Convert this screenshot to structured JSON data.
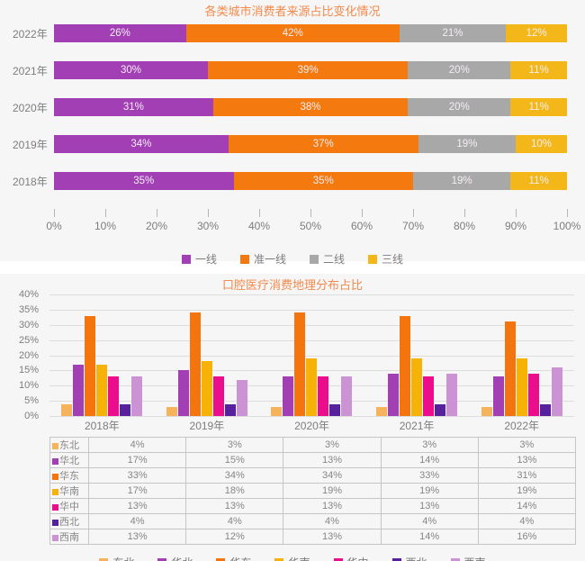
{
  "page": {
    "background": "#ffffff",
    "panel_background": "#f6f6f6"
  },
  "chart_data": [
    {
      "type": "bar",
      "variant": "stacked-horizontal",
      "title": "各类城市消费者来源占比变化情况",
      "title_color": "#f28a4d",
      "categories": [
        "2022年",
        "2021年",
        "2020年",
        "2019年",
        "2018年"
      ],
      "series": [
        {
          "name": "一线",
          "color": "#a23fb5",
          "values": [
            26,
            30,
            31,
            34,
            35
          ]
        },
        {
          "name": "准一线",
          "color": "#f4790f",
          "values": [
            42,
            39,
            38,
            37,
            35
          ]
        },
        {
          "name": "二线",
          "color": "#a8a8a8",
          "values": [
            21,
            20,
            20,
            19,
            19
          ]
        },
        {
          "name": "三线",
          "color": "#f3b71a",
          "values": [
            12,
            11,
            11,
            10,
            11
          ]
        }
      ],
      "x_ticks": [
        "0%",
        "10%",
        "20%",
        "30%",
        "40%",
        "50%",
        "60%",
        "70%",
        "80%",
        "90%",
        "100%"
      ],
      "xlim": [
        0,
        100
      ],
      "value_suffix": "%",
      "bar_label_color": "#f5eef5",
      "legend_position": "bottom",
      "grid": false
    },
    {
      "type": "bar",
      "variant": "grouped-vertical",
      "title": "口腔医疗消费地理分布占比",
      "title_color": "#f28a4d",
      "categories": [
        "2018年",
        "2019年",
        "2020年",
        "2021年",
        "2022年"
      ],
      "series": [
        {
          "name": "东北",
          "color": "#f6b35c",
          "values": [
            4,
            3,
            3,
            3,
            3
          ]
        },
        {
          "name": "华北",
          "color": "#a23fb5",
          "values": [
            17,
            15,
            13,
            14,
            13
          ]
        },
        {
          "name": "华东",
          "color": "#f4750e",
          "values": [
            33,
            34,
            34,
            33,
            31
          ]
        },
        {
          "name": "华南",
          "color": "#f7b207",
          "values": [
            17,
            18,
            19,
            19,
            19
          ]
        },
        {
          "name": "华中",
          "color": "#ec0d8d",
          "values": [
            13,
            13,
            13,
            13,
            14
          ]
        },
        {
          "name": "西北",
          "color": "#57219e",
          "values": [
            4,
            4,
            4,
            4,
            4
          ]
        },
        {
          "name": "西南",
          "color": "#cb93d4",
          "values": [
            13,
            12,
            13,
            14,
            16
          ]
        }
      ],
      "y_ticks": [
        "40%",
        "35%",
        "30%",
        "25%",
        "20%",
        "15%",
        "10%",
        "5%",
        "0%"
      ],
      "ylim": [
        0,
        40
      ],
      "grid": true,
      "value_suffix": "%",
      "data_table": true,
      "legend_position": "bottom"
    }
  ]
}
